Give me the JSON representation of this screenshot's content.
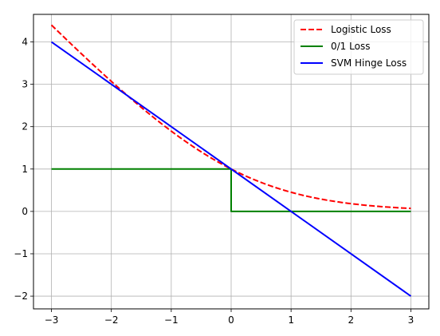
{
  "chart_data": {
    "type": "line",
    "title": "",
    "xlabel": "",
    "ylabel": "",
    "xlim": [
      -3.3,
      3.3
    ],
    "ylim": [
      -2.3,
      4.65
    ],
    "grid": true,
    "legend_position": "top-right",
    "x_ticks": [
      -3,
      -2,
      -1,
      0,
      1,
      2,
      3
    ],
    "x_tick_labels": [
      "−3",
      "−2",
      "−1",
      "0",
      "1",
      "2",
      "3"
    ],
    "y_ticks": [
      -2,
      -1,
      0,
      1,
      2,
      3,
      4
    ],
    "y_tick_labels": [
      "−2",
      "−1",
      "0",
      "1",
      "2",
      "3",
      "4"
    ],
    "series": [
      {
        "name": "Logistic Loss",
        "color": "#ff0000",
        "style": "dashed",
        "x": [
          -3,
          -2.5,
          -2,
          -1.5,
          -1,
          -0.5,
          0,
          0.5,
          1,
          1.5,
          2,
          2.5,
          3
        ],
        "y": [
          4.39,
          3.72,
          3.07,
          2.45,
          1.89,
          1.4,
          1.0,
          0.68,
          0.45,
          0.29,
          0.18,
          0.11,
          0.07
        ]
      },
      {
        "name": "0/1 Loss",
        "color": "#008000",
        "style": "solid",
        "x": [
          -3,
          0,
          0,
          3
        ],
        "y": [
          1,
          1,
          0,
          0
        ]
      },
      {
        "name": "SVM Hinge Loss",
        "color": "#0000ff",
        "style": "solid",
        "x": [
          -3,
          3
        ],
        "y": [
          4,
          -2
        ]
      }
    ]
  }
}
